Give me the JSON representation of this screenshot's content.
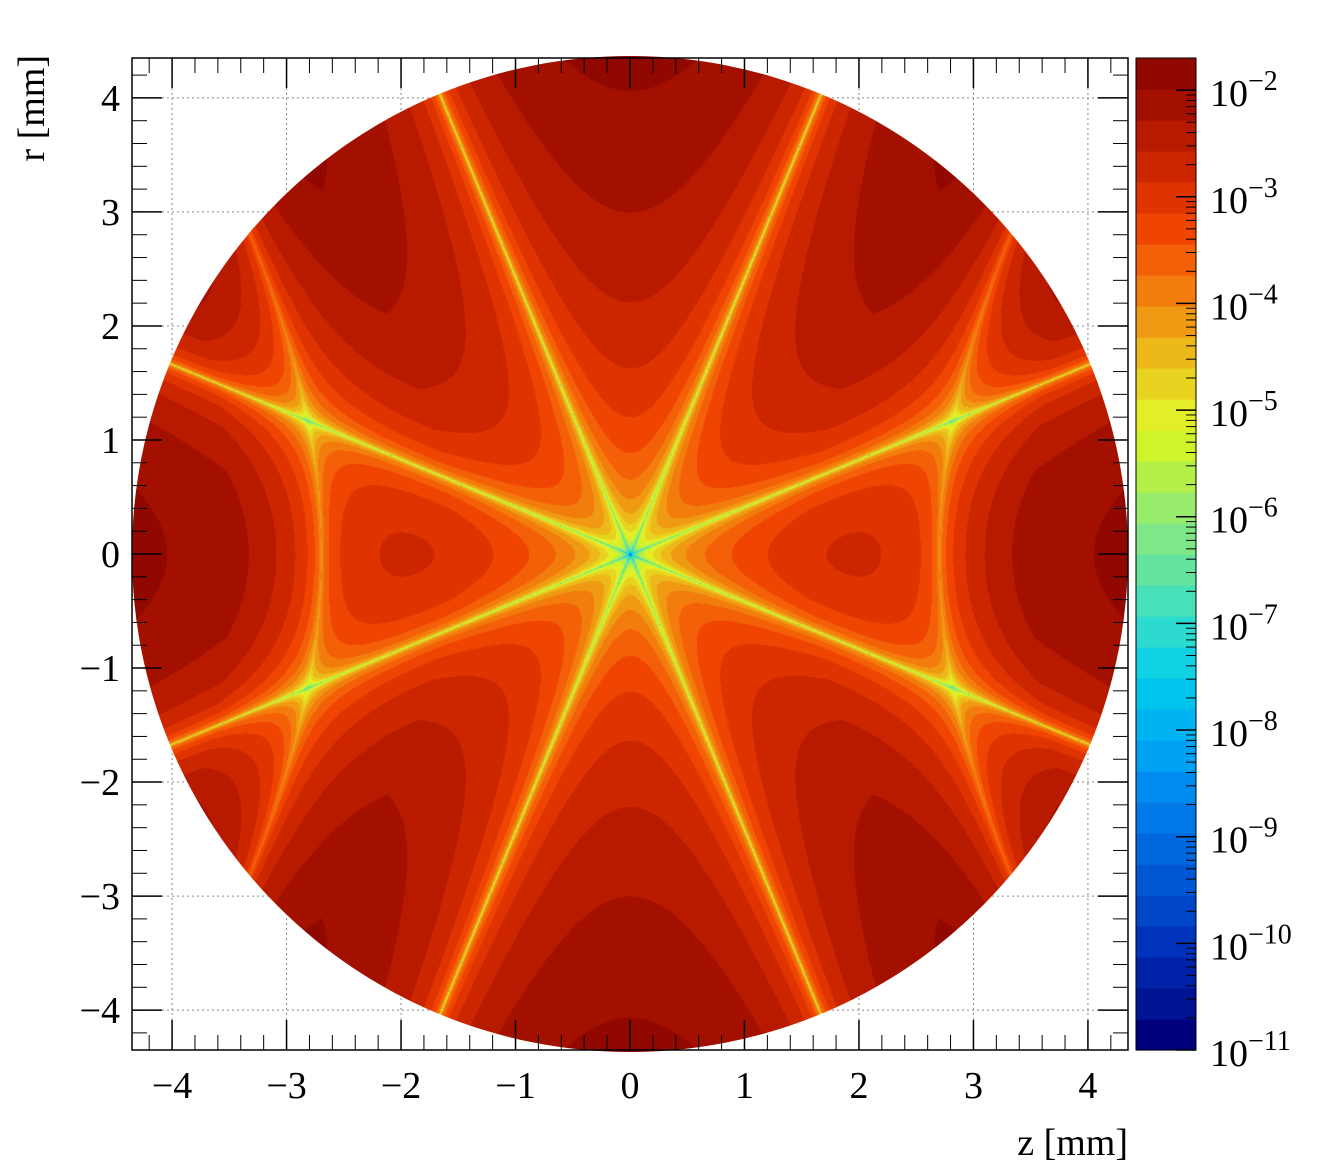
{
  "chart_data": {
    "type": "heatmap",
    "title": "",
    "xlabel": "z [mm]",
    "ylabel": "r [mm]",
    "xlim": [
      -4.35,
      4.35
    ],
    "ylim": [
      -4.35,
      4.35
    ],
    "x_ticks": [
      -4,
      -3,
      -2,
      -1,
      0,
      1,
      2,
      3,
      4
    ],
    "y_ticks": [
      -4,
      -3,
      -2,
      -1,
      0,
      1,
      2,
      3,
      4
    ],
    "x_tick_labels": [
      "−4",
      "−3",
      "−2",
      "−1",
      "0",
      "1",
      "2",
      "3",
      "4"
    ],
    "y_tick_labels": [
      "−4",
      "−3",
      "−2",
      "−1",
      "0",
      "1",
      "2",
      "3",
      "4"
    ],
    "grid": true,
    "region": "disk",
    "disk_radius": 4.35,
    "pattern": "8-fold star, zero lines through origin at multiples of 22.5 deg offset, hyperbolic nodal lines near |z|=2.7",
    "z_scale": "log",
    "zlim": [
      1e-11,
      0.02
    ],
    "colorbar": {
      "position": "right",
      "tick_exponents": [
        "−2",
        "−3",
        "−4",
        "−5",
        "−6",
        "−7",
        "−8",
        "−9",
        "−10",
        "−11"
      ],
      "tick_base": "10",
      "palette": [
        "#00007f",
        "#001494",
        "#0022a8",
        "#0033bb",
        "#0046c8",
        "#0057d4",
        "#0068df",
        "#007ae8",
        "#008cef",
        "#00a0f3",
        "#00b4f2",
        "#00c4ec",
        "#10d2e2",
        "#2cdad0",
        "#48e0b8",
        "#64e49e",
        "#7ee888",
        "#98ec6c",
        "#b4f048",
        "#d0f42c",
        "#e4ee28",
        "#e8d420",
        "#ecb81a",
        "#f09a14",
        "#f27c0c",
        "#f46008",
        "#f04402",
        "#e03400",
        "#cc2600",
        "#b81a00",
        "#a41000",
        "#900800"
      ]
    }
  }
}
